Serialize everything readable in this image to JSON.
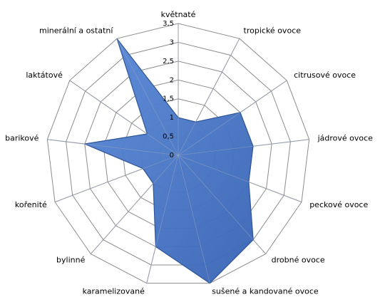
{
  "chart_data": {
    "type": "radar",
    "categories": [
      "květnaté",
      "tropické ovoce",
      "citrusové ovoce",
      "jádrové ovoce",
      "peckové ovoce",
      "drobné ovoce",
      "sušené a kandované ovoce",
      "karamelizované",
      "bylinné",
      "kořenité",
      "barikové",
      "laktátové",
      "minerální a ostatní"
    ],
    "values": [
      1,
      1,
      2,
      2,
      2,
      3,
      3.5,
      2.5,
      1,
      1,
      2.5,
      1,
      3.5
    ],
    "color": "#4a78c8",
    "ylim": [
      0,
      3.5
    ],
    "yticks": [
      0,
      {
        "value": 0.5,
        "label": "0,5"
      },
      1,
      {
        "value": 1.5,
        "label": "1,5"
      },
      2,
      {
        "value": 2.5,
        "label": "2,5"
      },
      3,
      {
        "value": 3.5,
        "label": "3,5"
      }
    ],
    "grid": true
  }
}
